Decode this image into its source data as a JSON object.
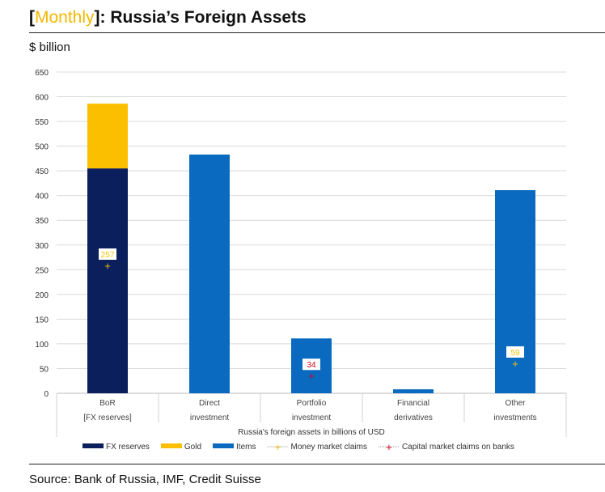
{
  "title": {
    "accent": "Monthly",
    "rest": "Russia’s Foreign Assets"
  },
  "unit": "$ billion",
  "source": "Source: Bank of Russia, IMF, Credit Suisse",
  "colors": {
    "fx": "#0b1f5c",
    "gold": "#fcbf00",
    "items": "#0a6ac0",
    "money": "#f5c400",
    "capital": "#d0021b"
  },
  "chart_data": {
    "type": "bar",
    "stacked": true,
    "xlabel": "Russia's foreign assets in billions of USD",
    "ylim": [
      0,
      650
    ],
    "yticks": [
      0,
      50,
      100,
      150,
      200,
      250,
      300,
      350,
      400,
      450,
      500,
      550,
      600,
      650
    ],
    "categories": [
      [
        "BoR",
        "[FX reserves]"
      ],
      [
        "Direct",
        "investment"
      ],
      [
        "Portfolio",
        "investment"
      ],
      [
        "Financial",
        "derivatives"
      ],
      [
        "Other",
        "investments"
      ]
    ],
    "series": [
      {
        "name": "FX reserves",
        "key": "fx",
        "values": [
          455,
          0,
          0,
          0,
          0
        ]
      },
      {
        "name": "Gold",
        "key": "gold",
        "values": [
          131,
          0,
          0,
          0,
          0
        ]
      },
      {
        "name": "Items",
        "key": "items",
        "values": [
          0,
          483,
          111,
          8,
          411
        ]
      }
    ],
    "markers": [
      {
        "name": "Money market claims",
        "key": "money",
        "values": [
          257,
          null,
          null,
          null,
          59
        ]
      },
      {
        "name": "Capital market claims on banks",
        "key": "capital",
        "values": [
          null,
          null,
          34,
          null,
          null
        ]
      }
    ],
    "grid": true,
    "legend": "bottom"
  }
}
